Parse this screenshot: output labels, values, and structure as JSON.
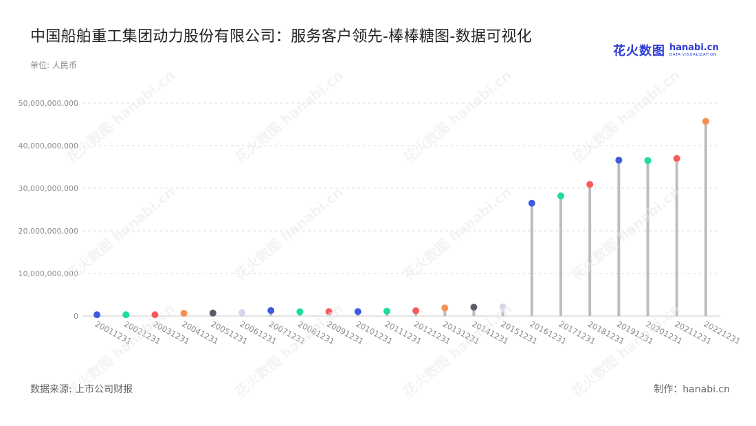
{
  "header": {
    "title": "中国船舶重工集团动力股份有限公司：服务客户领先-棒棒糖图-数据可视化",
    "unit": "单位: 人民币"
  },
  "logo": {
    "cn": "花火数图",
    "en": "hanabi.cn",
    "sub": "DATA VISUALIZATION"
  },
  "footer": {
    "source": "数据来源: 上市公司财报",
    "credit": "制作：hanabi.cn"
  },
  "watermark_text": "花火数图 hanabi.cn",
  "chart_data": {
    "type": "lollipop",
    "title": "中国船舶重工集团动力股份有限公司：服务客户领先-棒棒糖图-数据可视化",
    "ylabel": "单位: 人民币",
    "ylim": [
      0,
      50000000000
    ],
    "yticks": [
      0,
      10000000000,
      20000000000,
      30000000000,
      40000000000,
      50000000000
    ],
    "ytick_labels": [
      "0",
      "10,000,000,000",
      "20,000,000,000",
      "30,000,000,000",
      "40,000,000,000",
      "50,000,000,000"
    ],
    "grid": true,
    "categories": [
      "20011231",
      "20021231",
      "20031231",
      "20041231",
      "20051231",
      "20061231",
      "20071231",
      "20081231",
      "20091231",
      "20101231",
      "20111231",
      "20121231",
      "20131231",
      "20141231",
      "20151231",
      "20161231",
      "20171231",
      "20181231",
      "20191231",
      "20201231",
      "20211231",
      "20221231"
    ],
    "values": [
      300000000,
      300000000,
      300000000,
      650000000,
      700000000,
      800000000,
      1300000000,
      1000000000,
      1050000000,
      1050000000,
      1150000000,
      1250000000,
      1900000000,
      2100000000,
      2150000000,
      26500000000,
      28200000000,
      30900000000,
      36600000000,
      36500000000,
      37000000000,
      45700000000
    ],
    "colors": [
      "#3d5ae0",
      "#1ddc9f",
      "#f75b5b",
      "#f78f55",
      "#5b5b6b",
      "#d3d8e8",
      "#3d5ae0",
      "#1ddc9f",
      "#f75b5b",
      "#3d5ae0",
      "#1ddc9f",
      "#f75b5b",
      "#f78f55",
      "#5b5b6b",
      "#d3d8e8",
      "#3d5ae0",
      "#1ddc9f",
      "#f75b5b",
      "#3d5ae0",
      "#1ddc9f",
      "#f75b5b",
      "#f78f55"
    ],
    "stem_color": "#bdbdbd"
  }
}
